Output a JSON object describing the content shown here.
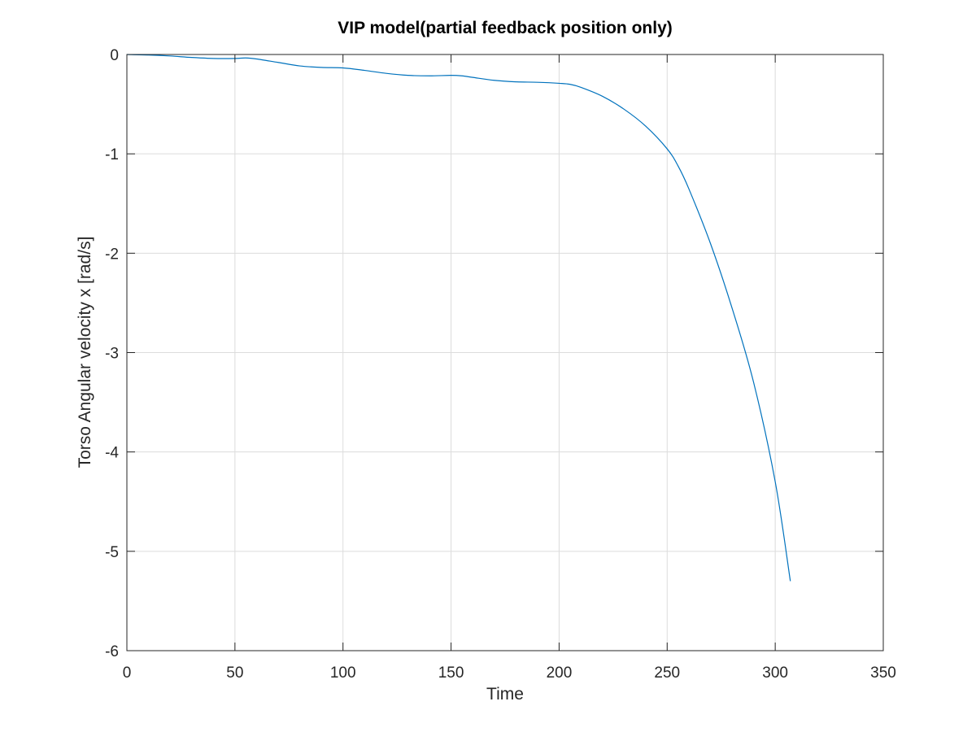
{
  "chart_data": {
    "type": "line",
    "title": "VIP model(partial feedback position only)",
    "xlabel": "Time",
    "ylabel": "Torso Angular velocity x [rad/s]",
    "xlim": [
      0,
      350
    ],
    "ylim": [
      -6,
      0
    ],
    "xticks": [
      0,
      50,
      100,
      150,
      200,
      250,
      300,
      350
    ],
    "yticks": [
      0,
      -1,
      -2,
      -3,
      -4,
      -5,
      -6
    ],
    "xtick_labels": [
      "0",
      "50",
      "100",
      "150",
      "200",
      "250",
      "300",
      "350"
    ],
    "ytick_labels": [
      "0",
      "-1",
      "-2",
      "-3",
      "-4",
      "-5",
      "-6"
    ],
    "grid": true,
    "series": [
      {
        "color": "#0072bd",
        "x": [
          0,
          10,
          20,
          30,
          40,
          50,
          55,
          60,
          70,
          80,
          90,
          100,
          110,
          120,
          130,
          140,
          150,
          155,
          160,
          170,
          180,
          190,
          200,
          205,
          210,
          220,
          230,
          240,
          250,
          255,
          260,
          270,
          280,
          290,
          300,
          307
        ],
        "y": [
          0,
          -0.005,
          -0.015,
          -0.03,
          -0.04,
          -0.04,
          -0.035,
          -0.045,
          -0.08,
          -0.115,
          -0.13,
          -0.135,
          -0.16,
          -0.19,
          -0.21,
          -0.215,
          -0.21,
          -0.215,
          -0.23,
          -0.26,
          -0.275,
          -0.28,
          -0.29,
          -0.3,
          -0.33,
          -0.42,
          -0.55,
          -0.72,
          -0.95,
          -1.12,
          -1.35,
          -1.9,
          -2.55,
          -3.3,
          -4.3,
          -5.3
        ]
      }
    ]
  }
}
